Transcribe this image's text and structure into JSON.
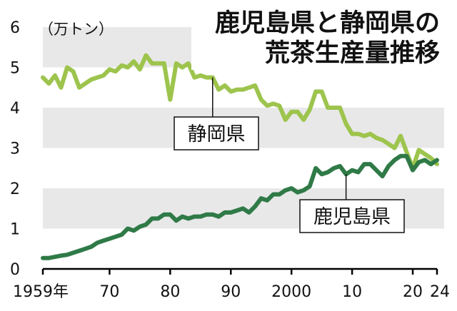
{
  "chart_data": {
    "type": "line",
    "title_lines": [
      "鹿児島県と静岡県の",
      "荒茶生産量推移"
    ],
    "unit_label": "（万トン）",
    "xlabel": "",
    "ylabel": "",
    "ylim": [
      0,
      6
    ],
    "xlim": [
      1959,
      2024
    ],
    "yticks": [
      0,
      1,
      2,
      3,
      4,
      5,
      6
    ],
    "ytick_labels": [
      "0",
      "1",
      "2",
      "3",
      "4",
      "5",
      "6"
    ],
    "xticks": [
      1959,
      1970,
      1980,
      1990,
      2000,
      2010,
      2020,
      2024
    ],
    "xtick_labels": [
      "1959年",
      "70",
      "80",
      "90",
      "2000",
      "10",
      "20",
      "24"
    ],
    "grid": "alternating horizontal bands",
    "legend": "none (direct callout labels)",
    "series": [
      {
        "name": "静岡県",
        "color": "#9dc44d",
        "x": [
          1959,
          1960,
          1961,
          1962,
          1963,
          1964,
          1965,
          1966,
          1967,
          1968,
          1969,
          1970,
          1971,
          1972,
          1973,
          1974,
          1975,
          1976,
          1977,
          1978,
          1979,
          1980,
          1981,
          1982,
          1983,
          1984,
          1985,
          1986,
          1987,
          1988,
          1989,
          1990,
          1991,
          1992,
          1993,
          1994,
          1995,
          1996,
          1997,
          1998,
          1999,
          2000,
          2001,
          2002,
          2003,
          2004,
          2005,
          2006,
          2007,
          2008,
          2009,
          2010,
          2011,
          2012,
          2013,
          2014,
          2015,
          2016,
          2017,
          2018,
          2019,
          2020,
          2021,
          2022,
          2023,
          2024
        ],
        "values": [
          4.75,
          4.6,
          4.8,
          4.5,
          5.0,
          4.9,
          4.5,
          4.6,
          4.7,
          4.75,
          4.8,
          4.95,
          4.9,
          5.05,
          5.0,
          5.15,
          4.95,
          5.3,
          5.1,
          5.1,
          5.1,
          4.2,
          5.1,
          5.0,
          5.1,
          4.75,
          4.8,
          4.75,
          4.75,
          4.45,
          4.55,
          4.4,
          4.45,
          4.45,
          4.5,
          4.55,
          4.2,
          4.05,
          4.1,
          4.05,
          3.7,
          3.9,
          3.9,
          3.7,
          3.95,
          4.4,
          4.4,
          4.0,
          4.0,
          4.0,
          3.6,
          3.35,
          3.35,
          3.3,
          3.35,
          3.25,
          3.2,
          3.1,
          3.0,
          3.3,
          2.9,
          2.5,
          2.95,
          2.85,
          2.75,
          2.6
        ]
      },
      {
        "name": "鹿児島県",
        "color": "#2f7a47",
        "x": [
          1959,
          1960,
          1961,
          1962,
          1963,
          1964,
          1965,
          1966,
          1967,
          1968,
          1969,
          1970,
          1971,
          1972,
          1973,
          1974,
          1975,
          1976,
          1977,
          1978,
          1979,
          1980,
          1981,
          1982,
          1983,
          1984,
          1985,
          1986,
          1987,
          1988,
          1989,
          1990,
          1991,
          1992,
          1993,
          1994,
          1995,
          1996,
          1997,
          1998,
          1999,
          2000,
          2001,
          2002,
          2003,
          2004,
          2005,
          2006,
          2007,
          2008,
          2009,
          2010,
          2011,
          2012,
          2013,
          2014,
          2015,
          2016,
          2017,
          2018,
          2019,
          2020,
          2021,
          2022,
          2023,
          2024
        ],
        "values": [
          0.27,
          0.27,
          0.3,
          0.33,
          0.35,
          0.4,
          0.45,
          0.5,
          0.55,
          0.65,
          0.7,
          0.75,
          0.8,
          0.85,
          1.0,
          0.95,
          1.05,
          1.1,
          1.25,
          1.25,
          1.35,
          1.35,
          1.2,
          1.3,
          1.25,
          1.3,
          1.3,
          1.35,
          1.35,
          1.3,
          1.4,
          1.4,
          1.45,
          1.5,
          1.4,
          1.55,
          1.75,
          1.7,
          1.85,
          1.85,
          1.95,
          2.0,
          1.9,
          1.95,
          2.05,
          2.5,
          2.35,
          2.4,
          2.5,
          2.55,
          2.35,
          2.45,
          2.4,
          2.6,
          2.6,
          2.45,
          2.3,
          2.55,
          2.7,
          2.8,
          2.8,
          2.45,
          2.65,
          2.7,
          2.6,
          2.7
        ]
      }
    ],
    "callouts": [
      {
        "text": "静岡県",
        "series": "静岡県",
        "anchor_x": 1987
      },
      {
        "text": "鹿児島県",
        "series": "鹿児島県",
        "anchor_x": 2009
      }
    ]
  }
}
